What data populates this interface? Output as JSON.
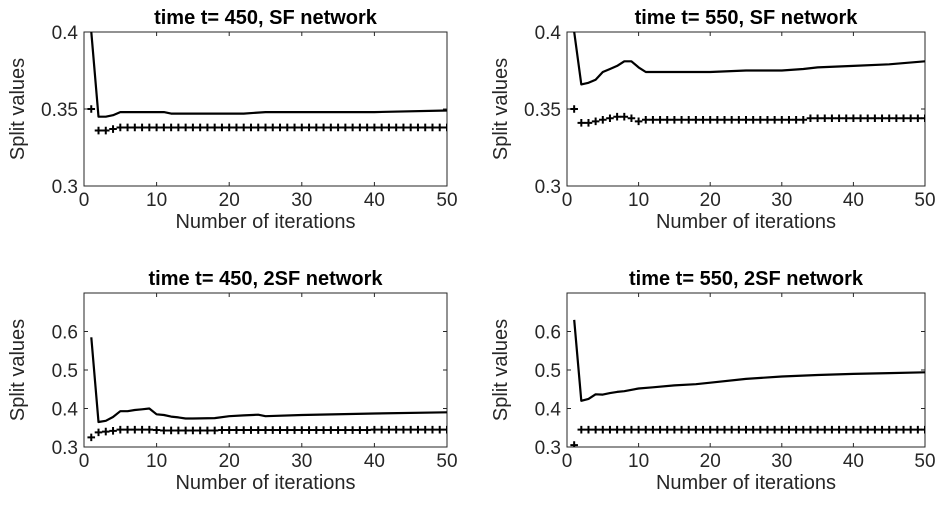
{
  "chart_data": [
    {
      "type": "line",
      "title": "time t= 450, SF network",
      "xlabel": "Number of iterations",
      "ylabel": "Split values",
      "xlim": [
        0,
        50
      ],
      "ylim": [
        0.3,
        0.4
      ],
      "xticks": [
        "0",
        "10",
        "20",
        "30",
        "40",
        "50"
      ],
      "yticks": [
        "0.3",
        "0.35",
        "0.4"
      ],
      "grid": false,
      "series": [
        {
          "style": "line",
          "color": "#000000",
          "x": [
            1,
            2,
            3,
            4,
            5,
            6,
            7,
            8,
            9,
            10,
            11,
            12,
            13,
            14,
            15,
            20,
            21,
            22,
            25,
            30,
            40,
            50
          ],
          "values": [
            0.4,
            0.345,
            0.345,
            0.346,
            0.348,
            0.348,
            0.348,
            0.348,
            0.348,
            0.348,
            0.348,
            0.347,
            0.347,
            0.347,
            0.347,
            0.347,
            0.347,
            0.347,
            0.348,
            0.348,
            0.348,
            0.349
          ]
        },
        {
          "style": "plus",
          "color": "#000000",
          "x": [
            1,
            2,
            3,
            4,
            5,
            6,
            7,
            8,
            9,
            10,
            11,
            12,
            13,
            14,
            15,
            16,
            17,
            18,
            19,
            20,
            21,
            22,
            23,
            24,
            25,
            26,
            27,
            28,
            29,
            30,
            31,
            32,
            33,
            34,
            35,
            36,
            37,
            38,
            39,
            40,
            41,
            42,
            43,
            44,
            45,
            46,
            47,
            48,
            49,
            50
          ],
          "values": [
            0.35,
            0.336,
            0.336,
            0.337,
            0.338,
            0.338,
            0.338,
            0.338,
            0.338,
            0.338,
            0.338,
            0.338,
            0.338,
            0.338,
            0.338,
            0.338,
            0.338,
            0.338,
            0.338,
            0.338,
            0.338,
            0.338,
            0.338,
            0.338,
            0.338,
            0.338,
            0.338,
            0.338,
            0.338,
            0.338,
            0.338,
            0.338,
            0.338,
            0.338,
            0.338,
            0.338,
            0.338,
            0.338,
            0.338,
            0.338,
            0.338,
            0.338,
            0.338,
            0.338,
            0.338,
            0.338,
            0.338,
            0.338,
            0.338,
            0.338
          ]
        }
      ]
    },
    {
      "type": "line",
      "title": "time t= 550, SF network",
      "xlabel": "Number of iterations",
      "ylabel": "Split values",
      "xlim": [
        0,
        50
      ],
      "ylim": [
        0.3,
        0.4
      ],
      "xticks": [
        "0",
        "10",
        "20",
        "30",
        "40",
        "50"
      ],
      "yticks": [
        "0.3",
        "0.35",
        "0.4"
      ],
      "grid": false,
      "series": [
        {
          "style": "line",
          "color": "#000000",
          "x": [
            1,
            2,
            3,
            4,
            5,
            6,
            7,
            8,
            9,
            10,
            11,
            12,
            15,
            20,
            25,
            30,
            33,
            35,
            40,
            45,
            50
          ],
          "values": [
            0.4,
            0.366,
            0.367,
            0.369,
            0.374,
            0.376,
            0.378,
            0.381,
            0.381,
            0.377,
            0.374,
            0.374,
            0.374,
            0.374,
            0.375,
            0.375,
            0.376,
            0.377,
            0.378,
            0.379,
            0.381
          ]
        },
        {
          "style": "plus",
          "color": "#000000",
          "x": [
            1,
            2,
            3,
            4,
            5,
            6,
            7,
            8,
            9,
            10,
            11,
            12,
            13,
            14,
            15,
            16,
            17,
            18,
            19,
            20,
            21,
            22,
            23,
            24,
            25,
            26,
            27,
            28,
            29,
            30,
            31,
            32,
            33,
            34,
            35,
            36,
            37,
            38,
            39,
            40,
            41,
            42,
            43,
            44,
            45,
            46,
            47,
            48,
            49,
            50
          ],
          "values": [
            0.35,
            0.341,
            0.341,
            0.342,
            0.343,
            0.344,
            0.345,
            0.345,
            0.344,
            0.342,
            0.343,
            0.343,
            0.343,
            0.343,
            0.343,
            0.343,
            0.343,
            0.343,
            0.343,
            0.343,
            0.343,
            0.343,
            0.343,
            0.343,
            0.343,
            0.343,
            0.343,
            0.343,
            0.343,
            0.343,
            0.343,
            0.343,
            0.343,
            0.344,
            0.344,
            0.344,
            0.344,
            0.344,
            0.344,
            0.344,
            0.344,
            0.344,
            0.344,
            0.344,
            0.344,
            0.344,
            0.344,
            0.344,
            0.344,
            0.344
          ]
        }
      ]
    },
    {
      "type": "line",
      "title": "time t= 450, 2SF network",
      "xlabel": "Number of iterations",
      "ylabel": "Split values",
      "xlim": [
        0,
        50
      ],
      "ylim": [
        0.3,
        0.7
      ],
      "xticks": [
        "0",
        "10",
        "20",
        "30",
        "40",
        "50"
      ],
      "yticks": [
        "0.3",
        "0.4",
        "0.5",
        "0.6"
      ],
      "grid": false,
      "series": [
        {
          "style": "line",
          "color": "#000000",
          "x": [
            1,
            2,
            3,
            4,
            5,
            6,
            7,
            8,
            9,
            10,
            11,
            12,
            13,
            14,
            15,
            18,
            20,
            22,
            24,
            25,
            30,
            40,
            50
          ],
          "values": [
            0.585,
            0.365,
            0.368,
            0.378,
            0.393,
            0.393,
            0.396,
            0.398,
            0.4,
            0.385,
            0.383,
            0.379,
            0.377,
            0.374,
            0.374,
            0.375,
            0.38,
            0.382,
            0.384,
            0.38,
            0.383,
            0.387,
            0.39
          ]
        },
        {
          "style": "plus",
          "color": "#000000",
          "x": [
            1,
            2,
            3,
            4,
            5,
            6,
            7,
            8,
            9,
            10,
            11,
            12,
            13,
            14,
            15,
            16,
            17,
            18,
            19,
            20,
            21,
            22,
            23,
            24,
            25,
            26,
            27,
            28,
            29,
            30,
            31,
            32,
            33,
            34,
            35,
            36,
            37,
            38,
            39,
            40,
            41,
            42,
            43,
            44,
            45,
            46,
            47,
            48,
            49,
            50
          ],
          "values": [
            0.325,
            0.338,
            0.34,
            0.342,
            0.345,
            0.345,
            0.345,
            0.345,
            0.345,
            0.344,
            0.343,
            0.343,
            0.343,
            0.343,
            0.343,
            0.343,
            0.343,
            0.343,
            0.344,
            0.344,
            0.344,
            0.344,
            0.344,
            0.344,
            0.344,
            0.344,
            0.344,
            0.344,
            0.344,
            0.344,
            0.344,
            0.344,
            0.344,
            0.344,
            0.344,
            0.344,
            0.344,
            0.344,
            0.344,
            0.345,
            0.345,
            0.345,
            0.345,
            0.345,
            0.345,
            0.345,
            0.345,
            0.345,
            0.345,
            0.345
          ]
        }
      ]
    },
    {
      "type": "line",
      "title": "time t= 550, 2SF network",
      "xlabel": "Number of iterations",
      "ylabel": "Split values",
      "xlim": [
        0,
        50
      ],
      "ylim": [
        0.3,
        0.7
      ],
      "xticks": [
        "0",
        "10",
        "20",
        "30",
        "40",
        "50"
      ],
      "yticks": [
        "0.3",
        "0.4",
        "0.5",
        "0.6"
      ],
      "grid": false,
      "series": [
        {
          "style": "line",
          "color": "#000000",
          "x": [
            1,
            2,
            3,
            4,
            5,
            6,
            7,
            8,
            10,
            12,
            15,
            18,
            20,
            25,
            30,
            35,
            40,
            45,
            50
          ],
          "values": [
            0.63,
            0.42,
            0.425,
            0.437,
            0.436,
            0.44,
            0.443,
            0.445,
            0.452,
            0.455,
            0.46,
            0.463,
            0.467,
            0.477,
            0.483,
            0.487,
            0.49,
            0.492,
            0.494
          ]
        },
        {
          "style": "plus",
          "color": "#000000",
          "x": [
            1,
            2,
            3,
            4,
            5,
            6,
            7,
            8,
            9,
            10,
            11,
            12,
            13,
            14,
            15,
            16,
            17,
            18,
            19,
            20,
            21,
            22,
            23,
            24,
            25,
            26,
            27,
            28,
            29,
            30,
            31,
            32,
            33,
            34,
            35,
            36,
            37,
            38,
            39,
            40,
            41,
            42,
            43,
            44,
            45,
            46,
            47,
            48,
            49,
            50
          ],
          "values": [
            0.305,
            0.345,
            0.345,
            0.345,
            0.345,
            0.345,
            0.345,
            0.345,
            0.345,
            0.345,
            0.345,
            0.345,
            0.345,
            0.345,
            0.345,
            0.345,
            0.345,
            0.345,
            0.345,
            0.345,
            0.345,
            0.345,
            0.345,
            0.345,
            0.345,
            0.345,
            0.345,
            0.345,
            0.345,
            0.345,
            0.345,
            0.345,
            0.345,
            0.345,
            0.345,
            0.345,
            0.345,
            0.345,
            0.345,
            0.345,
            0.345,
            0.345,
            0.345,
            0.345,
            0.345,
            0.345,
            0.345,
            0.345,
            0.345,
            0.345
          ]
        }
      ]
    }
  ]
}
